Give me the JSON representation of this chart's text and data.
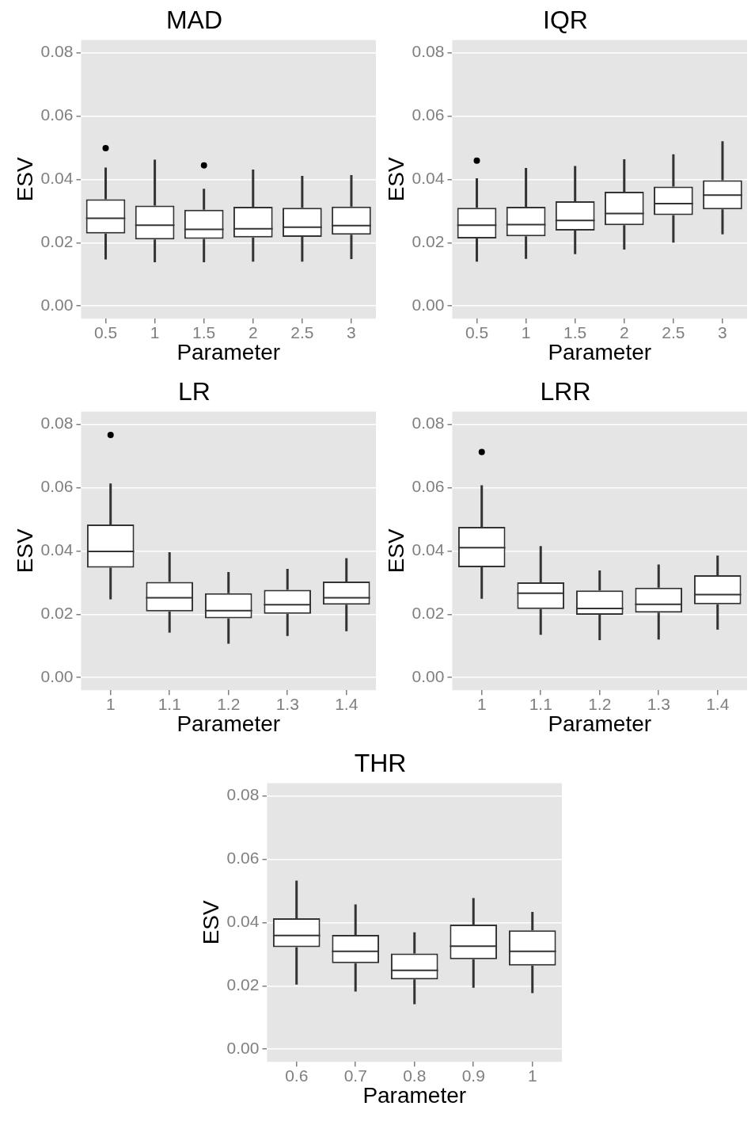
{
  "chart_data": [
    {
      "type": "box",
      "title": "MAD",
      "xlabel": "Parameter",
      "ylabel": "ESV",
      "categories": [
        "0.5",
        "1",
        "1.5",
        "2",
        "2.5",
        "3"
      ],
      "ylim": [
        -0.004,
        0.084
      ],
      "yticks": [
        {
          "value": 0,
          "label": "0.00"
        },
        {
          "value": 0.02,
          "label": "0.02"
        },
        {
          "value": 0.04,
          "label": "0.04"
        },
        {
          "value": 0.06,
          "label": "0.06"
        },
        {
          "value": 0.08,
          "label": "0.08"
        }
      ],
      "grid": "y",
      "color": "#333333",
      "boxes": [
        {
          "low": 0.0147,
          "q1": 0.0229,
          "median": 0.0277,
          "q3": 0.0337,
          "high": 0.0437,
          "outliers": [
            0.0498
          ]
        },
        {
          "low": 0.0138,
          "q1": 0.021,
          "median": 0.0255,
          "q3": 0.0317,
          "high": 0.0462
        },
        {
          "low": 0.0138,
          "q1": 0.0212,
          "median": 0.0242,
          "q3": 0.0304,
          "high": 0.037,
          "outliers": [
            0.0444
          ]
        },
        {
          "low": 0.014,
          "q1": 0.0216,
          "median": 0.0244,
          "q3": 0.0313,
          "high": 0.0431
        },
        {
          "low": 0.014,
          "q1": 0.0218,
          "median": 0.0249,
          "q3": 0.031,
          "high": 0.0411
        },
        {
          "low": 0.0148,
          "q1": 0.0225,
          "median": 0.0254,
          "q3": 0.0314,
          "high": 0.0413
        }
      ]
    },
    {
      "type": "box",
      "title": "IQR",
      "xlabel": "Parameter",
      "ylabel": "ESV",
      "categories": [
        "0.5",
        "1",
        "1.5",
        "2",
        "2.5",
        "3"
      ],
      "ylim": [
        -0.004,
        0.084
      ],
      "yticks": [
        {
          "value": 0,
          "label": "0.00"
        },
        {
          "value": 0.02,
          "label": "0.02"
        },
        {
          "value": 0.04,
          "label": "0.04"
        },
        {
          "value": 0.06,
          "label": "0.06"
        },
        {
          "value": 0.08,
          "label": "0.08"
        }
      ],
      "grid": "y",
      "color": "#333333",
      "boxes": [
        {
          "low": 0.014,
          "q1": 0.0213,
          "median": 0.0255,
          "q3": 0.031,
          "high": 0.0403,
          "outliers": [
            0.0459
          ]
        },
        {
          "low": 0.0149,
          "q1": 0.022,
          "median": 0.0257,
          "q3": 0.0313,
          "high": 0.0436
        },
        {
          "low": 0.0164,
          "q1": 0.0238,
          "median": 0.027,
          "q3": 0.0331,
          "high": 0.0442
        },
        {
          "low": 0.0178,
          "q1": 0.0255,
          "median": 0.0292,
          "q3": 0.0361,
          "high": 0.0463
        },
        {
          "low": 0.02,
          "q1": 0.0287,
          "median": 0.0323,
          "q3": 0.0377,
          "high": 0.0479
        },
        {
          "low": 0.0226,
          "q1": 0.0305,
          "median": 0.035,
          "q3": 0.0397,
          "high": 0.052
        }
      ]
    },
    {
      "type": "box",
      "title": "LR",
      "xlabel": "Parameter",
      "ylabel": "ESV",
      "categories": [
        "1",
        "1.1",
        "1.2",
        "1.3",
        "1.4"
      ],
      "ylim": [
        -0.004,
        0.084
      ],
      "yticks": [
        {
          "value": 0,
          "label": "0.00"
        },
        {
          "value": 0.02,
          "label": "0.02"
        },
        {
          "value": 0.04,
          "label": "0.04"
        },
        {
          "value": 0.06,
          "label": "0.06"
        },
        {
          "value": 0.08,
          "label": "0.08"
        }
      ],
      "grid": "y",
      "color": "#333333",
      "boxes": [
        {
          "low": 0.0247,
          "q1": 0.0347,
          "median": 0.0398,
          "q3": 0.0483,
          "high": 0.0613,
          "outliers": [
            0.0766
          ]
        },
        {
          "low": 0.0142,
          "q1": 0.0209,
          "median": 0.0252,
          "q3": 0.0302,
          "high": 0.0396
        },
        {
          "low": 0.0107,
          "q1": 0.0187,
          "median": 0.0211,
          "q3": 0.0266,
          "high": 0.0333
        },
        {
          "low": 0.0131,
          "q1": 0.0201,
          "median": 0.023,
          "q3": 0.0277,
          "high": 0.0343
        },
        {
          "low": 0.0146,
          "q1": 0.023,
          "median": 0.0252,
          "q3": 0.0303,
          "high": 0.0377
        }
      ]
    },
    {
      "type": "box",
      "title": "LRR",
      "xlabel": "Parameter",
      "ylabel": "ESV",
      "categories": [
        "1",
        "1.1",
        "1.2",
        "1.3",
        "1.4"
      ],
      "ylim": [
        -0.004,
        0.084
      ],
      "yticks": [
        {
          "value": 0,
          "label": "0.00"
        },
        {
          "value": 0.02,
          "label": "0.02"
        },
        {
          "value": 0.04,
          "label": "0.04"
        },
        {
          "value": 0.06,
          "label": "0.06"
        },
        {
          "value": 0.08,
          "label": "0.08"
        }
      ],
      "grid": "y",
      "color": "#333333",
      "boxes": [
        {
          "low": 0.0249,
          "q1": 0.0348,
          "median": 0.041,
          "q3": 0.0476,
          "high": 0.0607,
          "outliers": [
            0.0712
          ]
        },
        {
          "low": 0.0135,
          "q1": 0.0216,
          "median": 0.0266,
          "q3": 0.0301,
          "high": 0.0415
        },
        {
          "low": 0.0118,
          "q1": 0.0198,
          "median": 0.0218,
          "q3": 0.0275,
          "high": 0.0338
        },
        {
          "low": 0.012,
          "q1": 0.0205,
          "median": 0.0231,
          "q3": 0.0284,
          "high": 0.0357
        },
        {
          "low": 0.0151,
          "q1": 0.0231,
          "median": 0.0262,
          "q3": 0.0323,
          "high": 0.0385
        }
      ]
    },
    {
      "type": "box",
      "title": "THR",
      "xlabel": "Parameter",
      "ylabel": "ESV",
      "categories": [
        "0.6",
        "0.7",
        "0.8",
        "0.9",
        "1"
      ],
      "ylim": [
        -0.004,
        0.084
      ],
      "yticks": [
        {
          "value": 0,
          "label": "0.00"
        },
        {
          "value": 0.02,
          "label": "0.02"
        },
        {
          "value": 0.04,
          "label": "0.04"
        },
        {
          "value": 0.06,
          "label": "0.06"
        },
        {
          "value": 0.08,
          "label": "0.08"
        }
      ],
      "grid": "y",
      "color": "#333333",
      "boxes": [
        {
          "low": 0.0204,
          "q1": 0.0322,
          "median": 0.0359,
          "q3": 0.0413,
          "high": 0.0532
        },
        {
          "low": 0.0182,
          "q1": 0.0271,
          "median": 0.0309,
          "q3": 0.0361,
          "high": 0.0457
        },
        {
          "low": 0.0142,
          "q1": 0.022,
          "median": 0.0249,
          "q3": 0.0302,
          "high": 0.0369
        },
        {
          "low": 0.0194,
          "q1": 0.0284,
          "median": 0.0325,
          "q3": 0.0393,
          "high": 0.0477
        },
        {
          "low": 0.0177,
          "q1": 0.0264,
          "median": 0.0309,
          "q3": 0.0375,
          "high": 0.0433
        }
      ]
    }
  ]
}
